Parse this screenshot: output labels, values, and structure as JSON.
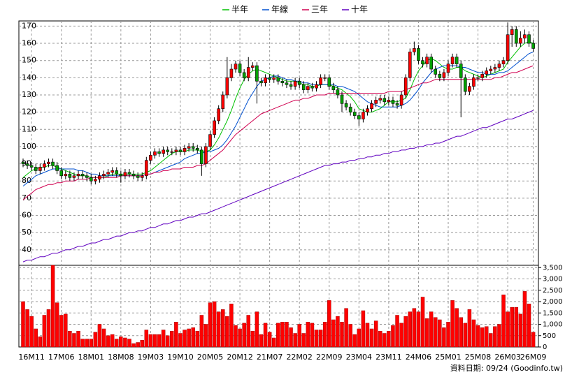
{
  "chart_data": {
    "type": "candlestick",
    "footer": "資料日期: 09/24 (Goodinfo.tw)",
    "categories": [
      null,
      null,
      "16M11",
      null,
      null,
      null,
      null,
      null,
      null,
      "17M06",
      null,
      null,
      null,
      null,
      null,
      null,
      "18M01",
      null,
      null,
      null,
      null,
      null,
      null,
      "18M08",
      null,
      null,
      null,
      null,
      null,
      null,
      "19M03",
      null,
      null,
      null,
      null,
      null,
      null,
      "19M10",
      null,
      null,
      null,
      null,
      null,
      null,
      "20M05",
      null,
      null,
      null,
      null,
      null,
      null,
      "20M12",
      null,
      null,
      null,
      null,
      null,
      null,
      "21M07",
      null,
      null,
      null,
      null,
      null,
      null,
      "22M02",
      null,
      null,
      null,
      null,
      null,
      null,
      "22M09",
      null,
      null,
      null,
      null,
      null,
      null,
      "23M04",
      null,
      null,
      null,
      null,
      null,
      null,
      "23M11",
      null,
      null,
      null,
      null,
      null,
      null,
      "24M06",
      null,
      null,
      null,
      null,
      null,
      null,
      "25M01",
      null,
      null,
      null,
      null,
      null,
      null,
      "25M08",
      null,
      null,
      null,
      null,
      null,
      null,
      "26M03",
      null,
      null,
      null,
      null,
      null,
      "26M09"
    ],
    "ylim": [
      31,
      173
    ],
    "yticks": [
      40,
      50,
      60,
      70,
      80,
      90,
      100,
      110,
      120,
      130,
      140,
      150,
      160,
      170
    ],
    "grid": true,
    "candles": {
      "up_color": "#ff0000",
      "down_color": "#00a000",
      "open": [
        91,
        90,
        89,
        88,
        86,
        88,
        90,
        91,
        89,
        86,
        83,
        84,
        82,
        83,
        84,
        83,
        82,
        80,
        81,
        83,
        84,
        85,
        86,
        84,
        83,
        85,
        84,
        83,
        82,
        83,
        92,
        95,
        97,
        96,
        98,
        97,
        97,
        98,
        97,
        99,
        100,
        99,
        98,
        90,
        100,
        107,
        115,
        122,
        130,
        140,
        145,
        148,
        143,
        140,
        146,
        147,
        138,
        137,
        140,
        139,
        140,
        138,
        137,
        136,
        135,
        138,
        136,
        133,
        135,
        134,
        136,
        140,
        140,
        135,
        133,
        130,
        125,
        123,
        120,
        118,
        116,
        120,
        122,
        125,
        127,
        128,
        126,
        127,
        125,
        124,
        130,
        140,
        155,
        157,
        150,
        148,
        152,
        145,
        142,
        140,
        143,
        148,
        152,
        148,
        140,
        132,
        135,
        140,
        140,
        142,
        144,
        145,
        146,
        148,
        150,
        165,
        168,
        160,
        163,
        165,
        160
      ],
      "high": [
        93,
        92,
        91,
        90,
        90,
        92,
        93,
        93,
        91,
        88,
        86,
        86,
        85,
        86,
        86,
        85,
        84,
        83,
        85,
        86,
        87,
        88,
        88,
        86,
        87,
        87,
        86,
        85,
        85,
        94,
        97,
        99,
        99,
        100,
        100,
        99,
        100,
        100,
        101,
        102,
        102,
        101,
        100,
        102,
        109,
        117,
        124,
        132,
        152,
        148,
        150,
        150,
        145,
        152,
        149,
        149,
        140,
        142,
        142,
        142,
        142,
        140,
        139,
        138,
        140,
        140,
        138,
        137,
        137,
        138,
        142,
        142,
        142,
        137,
        135,
        132,
        127,
        125,
        122,
        120,
        122,
        124,
        127,
        129,
        130,
        130,
        129,
        129,
        127,
        132,
        142,
        157,
        161,
        159,
        152,
        154,
        154,
        147,
        144,
        145,
        150,
        154,
        154,
        150,
        142,
        137,
        142,
        142,
        144,
        146,
        147,
        148,
        150,
        152,
        172,
        170,
        170,
        167,
        168,
        167,
        162
      ],
      "low": [
        88,
        87,
        86,
        84,
        84,
        86,
        88,
        87,
        84,
        81,
        81,
        80,
        80,
        81,
        81,
        80,
        78,
        78,
        79,
        81,
        82,
        83,
        82,
        79,
        81,
        82,
        81,
        80,
        80,
        81,
        90,
        93,
        94,
        94,
        95,
        95,
        95,
        95,
        95,
        97,
        97,
        96,
        83,
        88,
        98,
        105,
        113,
        120,
        128,
        138,
        143,
        141,
        138,
        138,
        144,
        125,
        135,
        135,
        137,
        137,
        136,
        135,
        134,
        133,
        133,
        134,
        131,
        131,
        132,
        132,
        134,
        138,
        133,
        131,
        128,
        120,
        121,
        118,
        116,
        112,
        114,
        118,
        120,
        123,
        125,
        124,
        124,
        123,
        122,
        122,
        128,
        138,
        153,
        148,
        146,
        146,
        143,
        140,
        138,
        138,
        141,
        146,
        146,
        117,
        130,
        130,
        133,
        138,
        138,
        140,
        142,
        143,
        144,
        146,
        148,
        158,
        158,
        158,
        160,
        158,
        155
      ],
      "close": [
        90,
        89,
        88,
        86,
        88,
        90,
        91,
        89,
        86,
        83,
        84,
        82,
        83,
        84,
        83,
        82,
        80,
        81,
        83,
        84,
        85,
        86,
        84,
        83,
        85,
        84,
        83,
        82,
        83,
        92,
        95,
        97,
        96,
        98,
        97,
        97,
        98,
        97,
        99,
        100,
        99,
        98,
        90,
        100,
        107,
        115,
        122,
        130,
        140,
        145,
        148,
        143,
        140,
        146,
        147,
        138,
        137,
        140,
        139,
        140,
        138,
        137,
        136,
        135,
        138,
        136,
        133,
        135,
        134,
        136,
        140,
        140,
        135,
        133,
        130,
        125,
        123,
        120,
        118,
        116,
        120,
        122,
        125,
        127,
        128,
        126,
        127,
        125,
        124,
        130,
        140,
        155,
        157,
        150,
        148,
        152,
        145,
        142,
        140,
        143,
        148,
        152,
        148,
        140,
        132,
        135,
        140,
        140,
        142,
        144,
        145,
        146,
        148,
        150,
        165,
        168,
        160,
        163,
        165,
        160,
        157
      ]
    },
    "series": [
      {
        "name": "半年",
        "color": "#00c000",
        "values": [
          82,
          84,
          86,
          87,
          88,
          88,
          89,
          89,
          88,
          87,
          86,
          85,
          84,
          83,
          83,
          83,
          82,
          82,
          82,
          82,
          83,
          84,
          84,
          84,
          84,
          84,
          84,
          84,
          84,
          85,
          86,
          88,
          90,
          92,
          94,
          96,
          97,
          97,
          97,
          98,
          98,
          98,
          97,
          97,
          98,
          101,
          105,
          110,
          115,
          121,
          128,
          134,
          139,
          142,
          144,
          145,
          144,
          143,
          142,
          141,
          140,
          139,
          138,
          138,
          138,
          137,
          136,
          136,
          135,
          135,
          136,
          136,
          136,
          135,
          134,
          133,
          131,
          129,
          126,
          122,
          121,
          120,
          120,
          121,
          122,
          124,
          126,
          126,
          126,
          127,
          128,
          133,
          139,
          144,
          147,
          150,
          151,
          150,
          148,
          146,
          145,
          145,
          146,
          146,
          144,
          143,
          142,
          141,
          140,
          141,
          142,
          143,
          144,
          145,
          149,
          152,
          155,
          158,
          160,
          161,
          160
        ]
      },
      {
        "name": "年線",
        "color": "#0050d0",
        "values": [
          77,
          79,
          81,
          83,
          84,
          85,
          86,
          87,
          87,
          87,
          87,
          87,
          87,
          86,
          86,
          85,
          84,
          84,
          83,
          83,
          83,
          83,
          83,
          83,
          83,
          83,
          83,
          83,
          83,
          84,
          84,
          85,
          86,
          87,
          88,
          89,
          90,
          91,
          93,
          94,
          95,
          96,
          96,
          97,
          97,
          98,
          99,
          101,
          104,
          108,
          112,
          117,
          122,
          127,
          131,
          135,
          138,
          139,
          140,
          141,
          141,
          140,
          139,
          139,
          138,
          138,
          137,
          137,
          136,
          136,
          136,
          136,
          136,
          136,
          135,
          135,
          134,
          133,
          132,
          130,
          128,
          126,
          125,
          124,
          123,
          123,
          123,
          123,
          123,
          124,
          125,
          127,
          130,
          133,
          137,
          140,
          143,
          145,
          146,
          147,
          147,
          147,
          147,
          146,
          146,
          145,
          144,
          143,
          143,
          142,
          142,
          142,
          143,
          143,
          144,
          146,
          148,
          150,
          152,
          154,
          155
        ]
      },
      {
        "name": "三年",
        "color": "#d00050",
        "values": [
          69,
          71,
          73,
          75,
          76,
          77,
          78,
          78,
          79,
          79,
          80,
          80,
          80,
          81,
          81,
          81,
          82,
          82,
          82,
          82,
          82,
          82,
          82,
          83,
          83,
          83,
          83,
          83,
          83,
          84,
          84,
          85,
          85,
          86,
          86,
          87,
          87,
          87,
          88,
          88,
          88,
          89,
          89,
          90,
          92,
          94,
          96,
          98,
          101,
          104,
          107,
          109,
          111,
          113,
          115,
          117,
          119,
          120,
          121,
          122,
          123,
          124,
          125,
          126,
          127,
          127,
          128,
          128,
          129,
          130,
          130,
          130,
          131,
          131,
          131,
          131,
          131,
          131,
          131,
          131,
          131,
          131,
          131,
          131,
          131,
          131,
          132,
          132,
          132,
          132,
          133,
          134,
          135,
          136,
          137,
          137,
          138,
          139,
          139,
          139,
          139,
          139,
          139,
          139,
          139,
          139,
          139,
          139,
          139,
          139,
          139,
          140,
          140,
          141,
          142,
          143,
          143,
          144,
          145,
          146,
          147
        ]
      },
      {
        "name": "十年",
        "color": "#6000c0",
        "values": [
          33,
          34,
          34,
          35,
          36,
          36,
          37,
          38,
          38,
          39,
          40,
          40,
          41,
          42,
          42,
          43,
          44,
          44,
          45,
          46,
          46,
          47,
          48,
          48,
          49,
          50,
          50,
          51,
          51,
          52,
          53,
          53,
          54,
          55,
          55,
          56,
          57,
          57,
          58,
          59,
          59,
          60,
          61,
          61,
          62,
          63,
          64,
          65,
          66,
          67,
          68,
          69,
          70,
          71,
          72,
          73,
          74,
          75,
          76,
          77,
          78,
          79,
          80,
          81,
          82,
          83,
          84,
          85,
          86,
          87,
          88,
          89,
          89,
          90,
          90,
          91,
          91,
          92,
          92,
          93,
          93,
          94,
          94,
          95,
          95,
          96,
          96,
          97,
          97,
          98,
          98,
          99,
          99,
          100,
          100,
          101,
          101,
          102,
          102,
          103,
          104,
          105,
          106,
          106,
          107,
          108,
          109,
          110,
          111,
          111,
          112,
          113,
          114,
          115,
          116,
          116,
          117,
          118,
          119,
          120,
          121
        ]
      }
    ],
    "volume": {
      "color": "#ff0000",
      "ylim": [
        0,
        3600
      ],
      "yticks": [
        0,
        500,
        {
          "value": 1000,
          "label": "1,000"
        },
        {
          "value": 1500,
          "label": "1,500"
        },
        {
          "value": 2000,
          "label": "2,000"
        },
        {
          "value": 2500,
          "label": "2,500"
        },
        {
          "value": 3000,
          "label": "3,000"
        },
        {
          "value": 3500,
          "label": "3,500"
        }
      ],
      "values": [
        2000,
        1650,
        1350,
        800,
        450,
        1400,
        1650,
        3600,
        1950,
        1400,
        1450,
        700,
        600,
        700,
        350,
        350,
        350,
        650,
        1000,
        800,
        500,
        550,
        350,
        450,
        400,
        350,
        150,
        200,
        300,
        750,
        550,
        550,
        550,
        750,
        500,
        700,
        1100,
        600,
        750,
        800,
        850,
        700,
        1400,
        1000,
        1950,
        2000,
        1550,
        1650,
        1350,
        1900,
        950,
        800,
        1050,
        1400,
        700,
        1550,
        550,
        1050,
        650,
        400,
        1050,
        1100,
        1100,
        850,
        600,
        1000,
        600,
        1100,
        1050,
        750,
        750,
        1100,
        2050,
        1200,
        1350,
        1100,
        1700,
        1000,
        550,
        800,
        1600,
        1050,
        800,
        1150,
        700,
        600,
        700,
        950,
        1400,
        1050,
        1350,
        1550,
        1700,
        1550,
        2200,
        1250,
        1550,
        1300,
        1200,
        850,
        1100,
        2050,
        1700,
        1300,
        1050,
        1650,
        1200,
        950,
        850,
        900,
        600,
        900,
        1000,
        2300,
        1550,
        1750,
        1750,
        1450,
        2450,
        1900,
        650
      ]
    }
  }
}
